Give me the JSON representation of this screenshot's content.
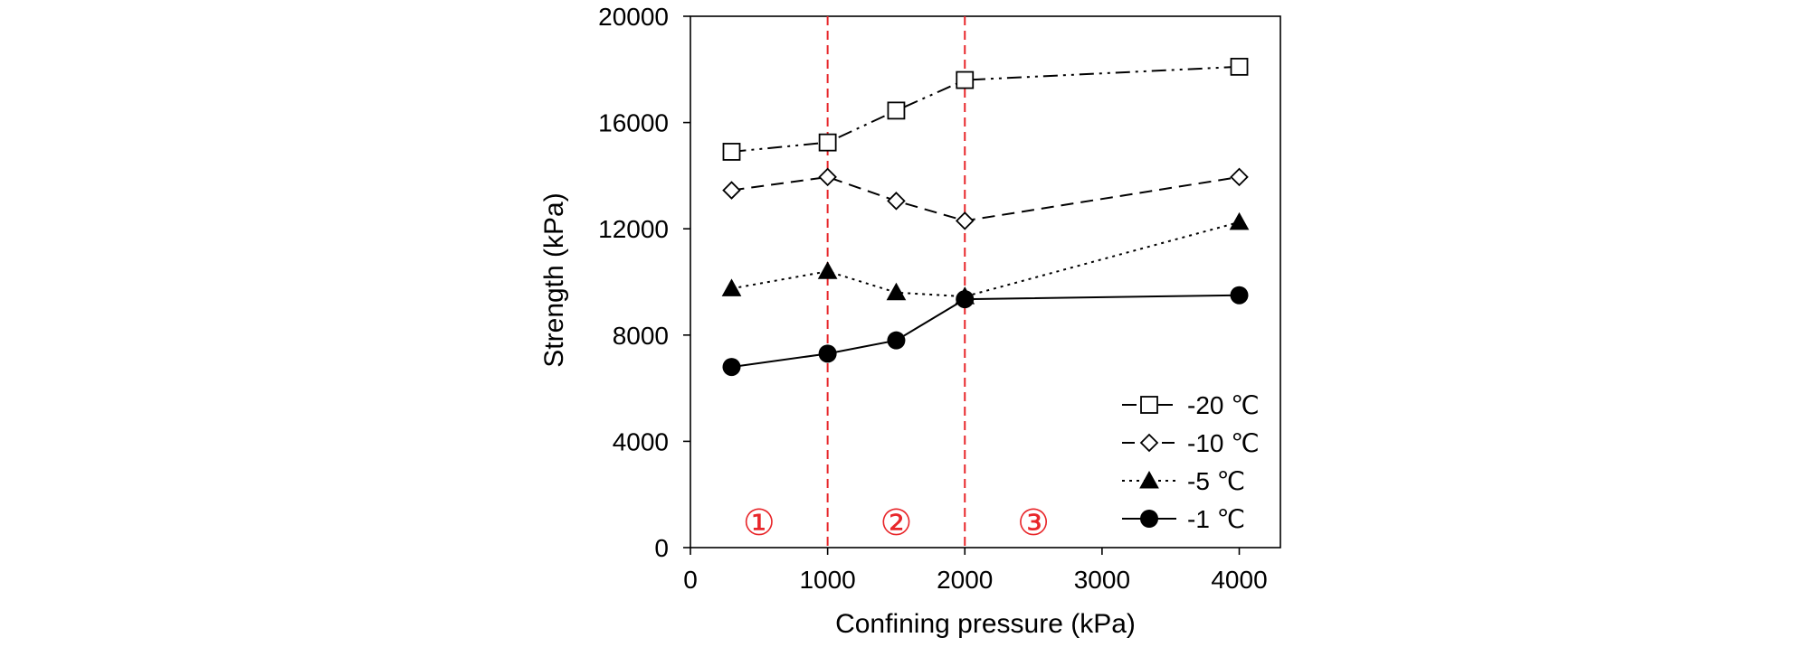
{
  "chart_data": {
    "type": "line",
    "xlabel": "Confining pressure (kPa)",
    "ylabel": "Strength (kPa)",
    "xlim": [
      0,
      4300
    ],
    "ylim": [
      0,
      20000
    ],
    "xticks": [
      0,
      1000,
      2000,
      3000,
      4000
    ],
    "yticks": [
      0,
      4000,
      8000,
      12000,
      16000,
      20000
    ],
    "x": [
      300,
      1000,
      1500,
      2000,
      4000
    ],
    "series": [
      {
        "name": "-20 ℃",
        "values": [
          14900,
          15250,
          16450,
          17600,
          18100
        ],
        "marker": "square-open",
        "dash": "dash-dot-dot"
      },
      {
        "name": "-10 ℃",
        "values": [
          13450,
          13950,
          13050,
          12300,
          13950
        ],
        "marker": "diamond-open",
        "dash": "dashed"
      },
      {
        "name": "-5 ℃",
        "values": [
          9750,
          10400,
          9600,
          9450,
          12250
        ],
        "marker": "triangle-filled",
        "dash": "dotted"
      },
      {
        "name": "-1 ℃",
        "values": [
          6800,
          7300,
          7800,
          9350,
          9500
        ],
        "marker": "circle-filled",
        "dash": "solid"
      }
    ],
    "reference_lines": [
      1000,
      2000
    ],
    "reference_color": "#e8262a",
    "zone_labels": [
      {
        "text": "①",
        "x": 500
      },
      {
        "text": "②",
        "x": 1500
      },
      {
        "text": "③",
        "x": 2500
      }
    ],
    "legend_position": "bottom-right",
    "grid": false
  }
}
